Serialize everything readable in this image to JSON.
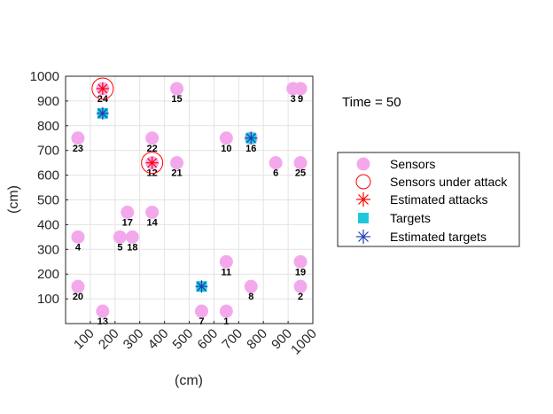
{
  "chart_data": {
    "type": "scatter",
    "xlabel": "(cm)",
    "ylabel": "(cm)",
    "xlim": [
      0,
      1000
    ],
    "ylim": [
      0,
      1000
    ],
    "xticks": [
      100,
      200,
      300,
      400,
      500,
      600,
      700,
      800,
      900,
      1000
    ],
    "yticks": [
      100,
      200,
      300,
      400,
      500,
      600,
      700,
      800,
      900,
      1000
    ],
    "grid": true,
    "annotation": "Time = 50",
    "legend_position": "right",
    "legend": [
      "Sensors",
      "Sensors under attack",
      "Estimated attacks",
      "Targets",
      "Estimated targets"
    ],
    "sensors": [
      {
        "id": "1",
        "x": 650,
        "y": 50
      },
      {
        "id": "2",
        "x": 950,
        "y": 150
      },
      {
        "id": "3",
        "x": 920,
        "y": 950
      },
      {
        "id": "4",
        "x": 50,
        "y": 350
      },
      {
        "id": "5",
        "x": 220,
        "y": 350
      },
      {
        "id": "6",
        "x": 850,
        "y": 650
      },
      {
        "id": "7",
        "x": 550,
        "y": 50
      },
      {
        "id": "8",
        "x": 750,
        "y": 150
      },
      {
        "id": "9",
        "x": 950,
        "y": 950
      },
      {
        "id": "10",
        "x": 650,
        "y": 750
      },
      {
        "id": "11",
        "x": 650,
        "y": 250
      },
      {
        "id": "12",
        "x": 350,
        "y": 650
      },
      {
        "id": "13",
        "x": 150,
        "y": 50
      },
      {
        "id": "14",
        "x": 350,
        "y": 450
      },
      {
        "id": "15",
        "x": 450,
        "y": 950
      },
      {
        "id": "16",
        "x": 750,
        "y": 750
      },
      {
        "id": "17",
        "x": 250,
        "y": 450
      },
      {
        "id": "18",
        "x": 270,
        "y": 350
      },
      {
        "id": "19",
        "x": 950,
        "y": 250
      },
      {
        "id": "20",
        "x": 50,
        "y": 150
      },
      {
        "id": "21",
        "x": 450,
        "y": 650
      },
      {
        "id": "22",
        "x": 350,
        "y": 750
      },
      {
        "id": "23",
        "x": 50,
        "y": 750
      },
      {
        "id": "24",
        "x": 150,
        "y": 950
      },
      {
        "id": "25",
        "x": 950,
        "y": 650
      }
    ],
    "sensors_under_attack": [
      {
        "x": 150,
        "y": 950
      },
      {
        "x": 350,
        "y": 650
      }
    ],
    "estimated_attacks": [
      {
        "x": 150,
        "y": 950
      },
      {
        "x": 350,
        "y": 650
      }
    ],
    "targets": [
      {
        "x": 150,
        "y": 850
      },
      {
        "x": 550,
        "y": 150
      },
      {
        "x": 750,
        "y": 750
      }
    ],
    "estimated_targets": [
      {
        "x": 150,
        "y": 850
      },
      {
        "x": 550,
        "y": 150
      },
      {
        "x": 750,
        "y": 750
      }
    ],
    "colors": {
      "sensor": "#f4a8ec",
      "attack": "#ff0000",
      "target": "#1ec8dc",
      "estimated_target": "#1f3fb4"
    }
  }
}
